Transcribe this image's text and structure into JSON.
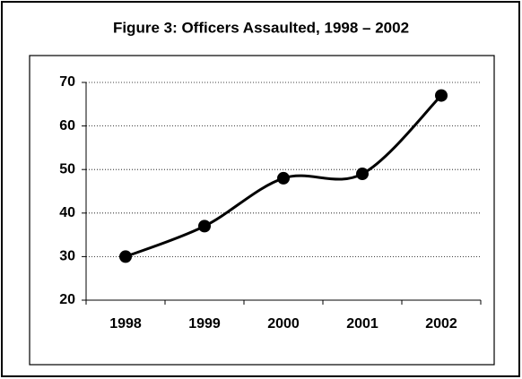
{
  "chart_data": {
    "type": "line",
    "title": "Figure 3: Officers Assaulted, 1998 – 2002",
    "categories": [
      "1998",
      "1999",
      "2000",
      "2001",
      "2002"
    ],
    "series": [
      {
        "name": "Officers Assaulted",
        "color": "#000000",
        "values": [
          30,
          37,
          48,
          49,
          67
        ]
      }
    ],
    "ylim": [
      20,
      70
    ],
    "yticks": [
      20,
      30,
      40,
      50,
      60,
      70
    ],
    "grid": true,
    "smooth": true
  }
}
